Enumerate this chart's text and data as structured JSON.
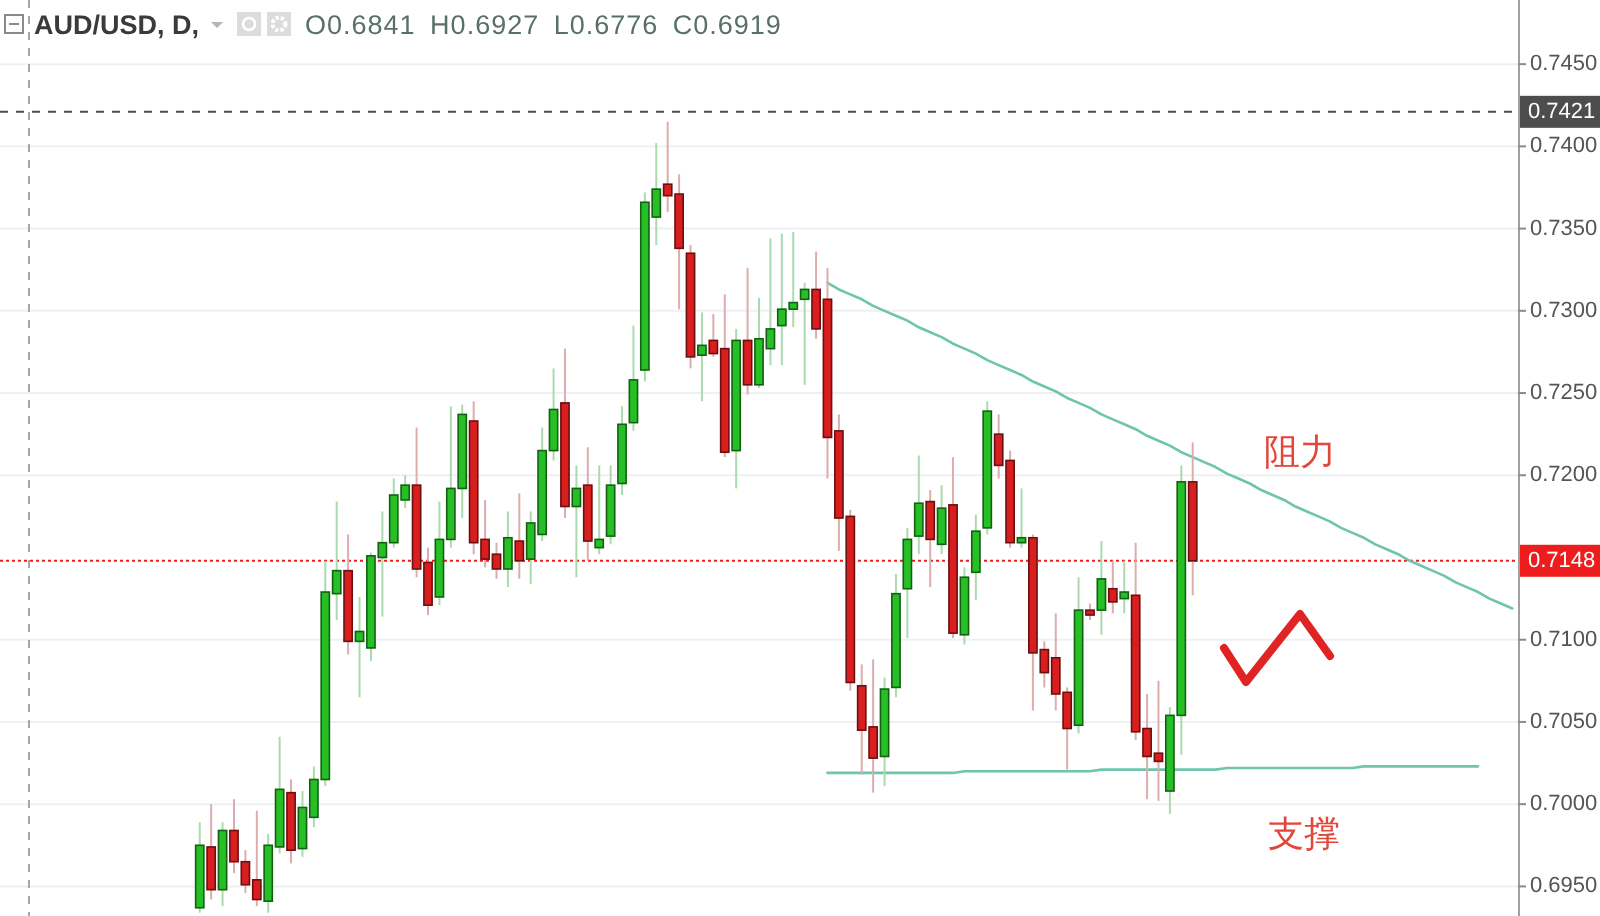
{
  "chart_data": {
    "type": "candlestick",
    "title": "AUD/USD, D,",
    "subtitle": "O0.6841 H0.6927 L0.6776 C0.6919",
    "categories": [
      null,
      null,
      null,
      null,
      null,
      null,
      null,
      null,
      null,
      null,
      null,
      null,
      null,
      null,
      null,
      null,
      null,
      null,
      null,
      null,
      null,
      null,
      null,
      null,
      null,
      null,
      null,
      null,
      null,
      null,
      null,
      null,
      null,
      null,
      null,
      null,
      null,
      null,
      null,
      null,
      null,
      null,
      null,
      null,
      null,
      null,
      null,
      null,
      null,
      null,
      null,
      null,
      null,
      null,
      null,
      null,
      null,
      null,
      null,
      null,
      null,
      null,
      null,
      null,
      null,
      null,
      null,
      null,
      null,
      null,
      null,
      null,
      null,
      null,
      null,
      null,
      null,
      null,
      null,
      null,
      null,
      null,
      null,
      null,
      null,
      null,
      null,
      null,
      null,
      null,
      null,
      null,
      null,
      null,
      null,
      null,
      null,
      null,
      null,
      null,
      null,
      null,
      null,
      null,
      null,
      null,
      null,
      null,
      null,
      null,
      null,
      null,
      null,
      null,
      null,
      null,
      null,
      null,
      null,
      null,
      null,
      null,
      null,
      null,
      null,
      null,
      null,
      null,
      null,
      null,
      null,
      null,
      null
    ],
    "ohlc": [
      [
        null,
        null,
        null,
        null
      ],
      [
        null,
        null,
        null,
        null
      ],
      [
        null,
        null,
        null,
        null
      ],
      [
        null,
        null,
        null,
        null
      ],
      [
        null,
        null,
        null,
        null
      ],
      [
        null,
        null,
        null,
        null
      ],
      [
        null,
        null,
        null,
        null
      ],
      [
        null,
        null,
        null,
        null
      ],
      [
        null,
        null,
        null,
        null
      ],
      [
        null,
        null,
        null,
        null
      ],
      [
        null,
        null,
        null,
        null
      ],
      [
        null,
        null,
        null,
        null
      ],
      [
        null,
        null,
        null,
        null
      ],
      [
        null,
        null,
        null,
        null
      ],
      [
        null,
        null,
        null,
        null
      ],
      [
        null,
        null,
        null,
        null
      ],
      [
        null,
        null,
        null,
        null
      ],
      [
        0.6937,
        0.6989,
        0.6934,
        0.6975
      ],
      [
        0.6974,
        0.7,
        0.6942,
        0.6948
      ],
      [
        0.6948,
        0.6989,
        0.6938,
        0.6984
      ],
      [
        0.6984,
        0.7003,
        0.6958,
        0.6965
      ],
      [
        0.6965,
        0.6972,
        0.6946,
        0.6951
      ],
      [
        0.6954,
        0.6996,
        0.6938,
        0.6942
      ],
      [
        0.6941,
        0.6982,
        0.6934,
        0.6975
      ],
      [
        0.6974,
        0.7041,
        0.697,
        0.7009
      ],
      [
        0.7007,
        0.7015,
        0.6964,
        0.6972
      ],
      [
        0.6973,
        0.7008,
        0.6968,
        0.6998
      ],
      [
        0.6992,
        0.7023,
        0.6986,
        0.7015
      ],
      [
        0.7015,
        0.7148,
        0.7011,
        0.7129
      ],
      [
        0.7128,
        0.7184,
        0.7112,
        0.7142
      ],
      [
        0.7142,
        0.7164,
        0.7091,
        0.7099
      ],
      [
        0.7099,
        0.7126,
        0.7065,
        0.7105
      ],
      [
        0.7095,
        0.7153,
        0.7087,
        0.7151
      ],
      [
        0.715,
        0.7178,
        0.7114,
        0.7159
      ],
      [
        0.7159,
        0.7198,
        0.7156,
        0.7188
      ],
      [
        0.7185,
        0.72,
        0.718,
        0.7194
      ],
      [
        0.7194,
        0.7229,
        0.7138,
        0.7143
      ],
      [
        0.7147,
        0.7156,
        0.7115,
        0.7121
      ],
      [
        0.7126,
        0.7184,
        0.7121,
        0.7161
      ],
      [
        0.7161,
        0.7242,
        0.7156,
        0.7192
      ],
      [
        0.7192,
        0.7243,
        0.7174,
        0.7237
      ],
      [
        0.7233,
        0.7245,
        0.7152,
        0.7159
      ],
      [
        0.7161,
        0.7185,
        0.7144,
        0.7149
      ],
      [
        0.7152,
        0.7159,
        0.7137,
        0.7143
      ],
      [
        0.7143,
        0.7178,
        0.7132,
        0.7162
      ],
      [
        0.716,
        0.7189,
        0.7137,
        0.7148
      ],
      [
        0.7149,
        0.7178,
        0.7134,
        0.7171
      ],
      [
        0.7164,
        0.7229,
        0.716,
        0.7215
      ],
      [
        0.7215,
        0.7265,
        0.7209,
        0.724
      ],
      [
        0.7244,
        0.7277,
        0.7174,
        0.7181
      ],
      [
        0.7181,
        0.7206,
        0.7138,
        0.7192
      ],
      [
        0.7194,
        0.7217,
        0.7148,
        0.716
      ],
      [
        0.7156,
        0.7206,
        0.7152,
        0.7161
      ],
      [
        0.7163,
        0.7206,
        0.7158,
        0.7194
      ],
      [
        0.7195,
        0.7242,
        0.7188,
        0.7231
      ],
      [
        0.7232,
        0.7291,
        0.7227,
        0.7258
      ],
      [
        0.7264,
        0.7372,
        0.7257,
        0.7366
      ],
      [
        0.7357,
        0.7402,
        0.734,
        0.7374
      ],
      [
        0.7377,
        0.7415,
        0.736,
        0.737
      ],
      [
        0.7371,
        0.7383,
        0.7301,
        0.7338
      ],
      [
        0.7335,
        0.734,
        0.7265,
        0.7272
      ],
      [
        0.7273,
        0.7299,
        0.7245,
        0.7279
      ],
      [
        0.7282,
        0.7298,
        0.7272,
        0.7274
      ],
      [
        0.7277,
        0.731,
        0.7211,
        0.7214
      ],
      [
        0.7215,
        0.7289,
        0.7192,
        0.7282
      ],
      [
        0.7282,
        0.7326,
        0.7249,
        0.7255
      ],
      [
        0.7255,
        0.7308,
        0.7253,
        0.7283
      ],
      [
        0.7277,
        0.7344,
        0.7267,
        0.7289
      ],
      [
        0.7291,
        0.7347,
        0.7267,
        0.7301
      ],
      [
        0.7301,
        0.7348,
        0.729,
        0.7305
      ],
      [
        0.7307,
        0.7317,
        0.7255,
        0.7313
      ],
      [
        0.7313,
        0.7336,
        0.7283,
        0.7289
      ],
      [
        0.7307,
        0.7326,
        0.7198,
        0.7223
      ],
      [
        0.7227,
        0.7237,
        0.7154,
        0.7174
      ],
      [
        0.7175,
        0.7179,
        0.7069,
        0.7074
      ],
      [
        0.7072,
        0.7085,
        0.7018,
        0.7045
      ],
      [
        0.7047,
        0.7088,
        0.7007,
        0.7028
      ],
      [
        0.7029,
        0.7077,
        0.7011,
        0.707
      ],
      [
        0.7071,
        0.714,
        0.7065,
        0.7128
      ],
      [
        0.7131,
        0.7168,
        0.7101,
        0.7161
      ],
      [
        0.7163,
        0.7212,
        0.7152,
        0.7183
      ],
      [
        0.7184,
        0.7191,
        0.7132,
        0.7161
      ],
      [
        0.7158,
        0.7194,
        0.7152,
        0.718
      ],
      [
        0.7182,
        0.7211,
        0.7101,
        0.7104
      ],
      [
        0.7103,
        0.7144,
        0.7097,
        0.7138
      ],
      [
        0.7141,
        0.7176,
        0.7124,
        0.7166
      ],
      [
        0.7168,
        0.7245,
        0.7164,
        0.7239
      ],
      [
        0.7225,
        0.7237,
        0.7198,
        0.7206
      ],
      [
        0.7209,
        0.7215,
        0.7156,
        0.7159
      ],
      [
        0.7159,
        0.7192,
        0.7156,
        0.7162
      ],
      [
        0.7162,
        0.7164,
        0.7057,
        0.7092
      ],
      [
        0.7094,
        0.7099,
        0.7071,
        0.708
      ],
      [
        0.7089,
        0.7116,
        0.7057,
        0.7067
      ],
      [
        0.7068,
        0.7071,
        0.7021,
        0.7046
      ],
      [
        0.7048,
        0.7138,
        0.7043,
        0.7118
      ],
      [
        0.7118,
        0.7122,
        0.7112,
        0.7115
      ],
      [
        0.7118,
        0.716,
        0.7103,
        0.7137
      ],
      [
        0.7131,
        0.7148,
        0.7116,
        0.7123
      ],
      [
        0.7125,
        0.7148,
        0.7116,
        0.7129
      ],
      [
        0.7127,
        0.7159,
        0.7039,
        0.7044
      ],
      [
        0.7046,
        0.7067,
        0.7003,
        0.7029
      ],
      [
        0.7031,
        0.7075,
        0.7002,
        0.7026
      ],
      [
        0.7008,
        0.7059,
        0.6994,
        0.7054
      ],
      [
        0.7054,
        0.7206,
        0.703,
        0.7196
      ],
      [
        0.7196,
        0.722,
        0.7127,
        0.7148
      ],
      null,
      null,
      null,
      null,
      null,
      null,
      null,
      null,
      null,
      null,
      null,
      null,
      null,
      null,
      null,
      null,
      null,
      null,
      null,
      null,
      null,
      null,
      null,
      null,
      null,
      null,
      null,
      null
    ],
    "colors": [
      null,
      null,
      null,
      null,
      null,
      null,
      null,
      null,
      null,
      null,
      null,
      null,
      null,
      null,
      null,
      null,
      null,
      "#26c026",
      "#d81e1e",
      "#26c026",
      "#d81e1e",
      "#d81e1e",
      "#d81e1e",
      "#26c026",
      "#26c026",
      "#d81e1e",
      "#26c026",
      "#26c026",
      "#26c026",
      "#26c026",
      "#d81e1e",
      "#26c026",
      "#26c026",
      "#26c026",
      "#26c026",
      "#26c026",
      "#d81e1e",
      "#d81e1e",
      "#26c026",
      "#26c026",
      "#26c026",
      "#d81e1e",
      "#d81e1e",
      "#d81e1e",
      "#26c026",
      "#d81e1e",
      "#26c026",
      "#26c026",
      "#26c026",
      "#d81e1e",
      "#26c026",
      "#d81e1e",
      "#26c026",
      "#26c026",
      "#26c026",
      "#26c026",
      "#26c026",
      "#26c026",
      "#d81e1e",
      "#d81e1e",
      "#d81e1e",
      "#26c026",
      "#d81e1e",
      "#d81e1e",
      "#26c026",
      "#d81e1e",
      "#26c026",
      "#26c026",
      "#26c026",
      "#26c026",
      "#26c026",
      "#d81e1e",
      "#d81e1e",
      "#d81e1e",
      "#d81e1e",
      "#d81e1e",
      "#d81e1e",
      "#26c026",
      "#26c026",
      "#26c026",
      "#26c026",
      "#d81e1e",
      "#26c026",
      "#d81e1e",
      "#26c026",
      "#26c026",
      "#26c026",
      "#d81e1e",
      "#d81e1e",
      "#26c026",
      "#d81e1e",
      "#d81e1e",
      "#d81e1e",
      "#d81e1e",
      "#26c026",
      "#d81e1e",
      "#26c026",
      "#d81e1e",
      "#26c026",
      "#d81e1e",
      "#d81e1e",
      "#d81e1e",
      "#26c026",
      "#26c026",
      "#d81e1e",
      null,
      null,
      null,
      null,
      null,
      null,
      null,
      null,
      null,
      null,
      null,
      null,
      null,
      null,
      null,
      null,
      null,
      null,
      null,
      null,
      null,
      null,
      null,
      null,
      null,
      null,
      null,
      null
    ],
    "series": [
      {
        "type": "line",
        "color": "#6fc4ae",
        "values": [
          null,
          null,
          null,
          null,
          null,
          null,
          null,
          null,
          null,
          null,
          null,
          null,
          null,
          null,
          null,
          null,
          null,
          null,
          null,
          null,
          null,
          null,
          null,
          null,
          null,
          null,
          null,
          null,
          null,
          null,
          null,
          null,
          null,
          null,
          null,
          null,
          null,
          null,
          null,
          null,
          null,
          null,
          null,
          null,
          null,
          null,
          null,
          null,
          null,
          null,
          null,
          null,
          null,
          null,
          null,
          null,
          null,
          null,
          null,
          null,
          null,
          null,
          null,
          null,
          null,
          null,
          null,
          null,
          null,
          null,
          null,
          null,
          0.7317,
          0.7313,
          0.731,
          0.7307,
          0.7303,
          0.73,
          0.7297,
          0.7294,
          0.729,
          0.7287,
          0.7284,
          0.728,
          0.7277,
          0.7274,
          0.727,
          0.7267,
          0.7264,
          0.7261,
          0.7257,
          0.7254,
          0.7251,
          0.7247,
          0.7244,
          0.7241,
          0.7237,
          0.7234,
          0.7231,
          0.7228,
          0.7224,
          0.7221,
          0.7218,
          0.7214,
          0.7211,
          0.7208,
          0.7205,
          0.7201,
          0.7198,
          0.7195,
          0.7191,
          0.7188,
          0.7185,
          0.7181,
          0.7178,
          0.7175,
          0.7172,
          0.7168,
          0.7165,
          0.7162,
          0.7158,
          0.7155,
          0.7152,
          0.7148,
          0.7145,
          0.7142,
          0.7139,
          0.7135,
          0.7132,
          0.7129,
          0.7125,
          0.7122,
          0.7119
        ]
      },
      {
        "type": "line",
        "color": "#6fc4ae",
        "values": [
          null,
          null,
          null,
          null,
          null,
          null,
          null,
          null,
          null,
          null,
          null,
          null,
          null,
          null,
          null,
          null,
          null,
          null,
          null,
          null,
          null,
          null,
          null,
          null,
          null,
          null,
          null,
          null,
          null,
          null,
          null,
          null,
          null,
          null,
          null,
          null,
          null,
          null,
          null,
          null,
          null,
          null,
          null,
          null,
          null,
          null,
          null,
          null,
          null,
          null,
          null,
          null,
          null,
          null,
          null,
          null,
          null,
          null,
          null,
          null,
          null,
          null,
          null,
          null,
          null,
          null,
          null,
          null,
          null,
          null,
          null,
          null,
          0.7019,
          0.7019,
          0.7019,
          0.7019,
          0.7019,
          0.7019,
          0.7019,
          0.7019,
          0.7019,
          0.7019,
          0.7019,
          0.7019,
          0.702,
          0.702,
          0.702,
          0.702,
          0.702,
          0.702,
          0.702,
          0.702,
          0.702,
          0.702,
          0.702,
          0.702,
          0.7021,
          0.7021,
          0.7021,
          0.7021,
          0.7021,
          0.7021,
          0.7021,
          0.7021,
          0.7021,
          0.7021,
          0.7021,
          0.7022,
          0.7022,
          0.7022,
          0.7022,
          0.7022,
          0.7022,
          0.7022,
          0.7022,
          0.7022,
          0.7022,
          0.7022,
          0.7022,
          0.7023,
          0.7023,
          0.7023,
          0.7023,
          0.7023,
          0.7023,
          0.7023,
          0.7023,
          0.7023,
          0.7023,
          0.7023,
          null,
          null,
          null
        ]
      }
    ],
    "ylim": [
      0.6932,
      0.7489
    ],
    "yticks": [
      {
        "value": 0.695,
        "label": "0.6950"
      },
      {
        "value": 0.7,
        "label": "0.7000"
      },
      {
        "value": 0.705,
        "label": "0.7050"
      },
      {
        "value": 0.71,
        "label": "0.7100"
      },
      {
        "value": 0.72,
        "label": "0.7200"
      },
      {
        "value": 0.725,
        "label": "0.7250"
      },
      {
        "value": 0.73,
        "label": "0.7300"
      },
      {
        "value": 0.735,
        "label": "0.7350"
      },
      {
        "value": 0.74,
        "label": "0.7400"
      },
      {
        "value": 0.745,
        "label": "0.7450"
      }
    ],
    "ref_lines": [
      {
        "axis": "y",
        "value": 0.7421,
        "label": "0.7421",
        "color": "#4d4d4d",
        "line_style": "dashed"
      },
      {
        "axis": "y",
        "value": 0.7148,
        "label": "0.7148",
        "color": "#ee1c1c",
        "line_style": "dotted"
      }
    ],
    "annotations": [
      "阻力",
      "支撑"
    ],
    "grid": "y"
  }
}
